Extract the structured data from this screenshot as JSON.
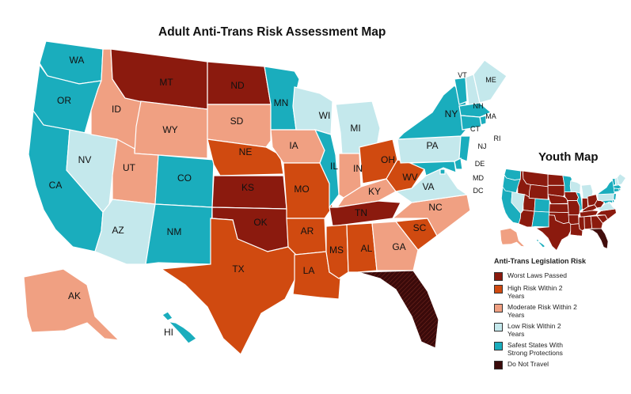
{
  "title": "Adult Anti-Trans Risk Assessment Map",
  "youth_title": "Youth Map",
  "colors": {
    "worst": "#8b1a0e",
    "high": "#d04a10",
    "moderate": "#f0a082",
    "low": "#c4e8ec",
    "safest": "#1aadbd",
    "dnt": "#3a0a0a",
    "border": "#ffffff"
  },
  "legend": {
    "title": "Anti-Trans Legislation Risk",
    "items": [
      {
        "label": "Worst Laws Passed",
        "color": "#8b1a0e"
      },
      {
        "label": "High Risk Within 2 Years",
        "color": "#d04a10"
      },
      {
        "label": "Moderate Risk Within 2 Years",
        "color": "#f0a082"
      },
      {
        "label": "Low Risk Within 2 Years",
        "color": "#c4e8ec"
      },
      {
        "label": "Safest States With Strong Protections",
        "color": "#1aadbd"
      },
      {
        "label": "Do Not Travel",
        "color": "#3a0a0a"
      }
    ]
  },
  "states": {
    "WA": "safest",
    "OR": "safest",
    "CA": "safest",
    "NV": "low",
    "ID": "moderate",
    "MT": "worst",
    "WY": "moderate",
    "UT": "moderate",
    "AZ": "low",
    "CO": "safest",
    "NM": "safest",
    "ND": "worst",
    "SD": "moderate",
    "NE": "high",
    "KS": "worst",
    "OK": "worst",
    "TX": "high",
    "MN": "safest",
    "IA": "moderate",
    "MO": "high",
    "AR": "high",
    "LA": "high",
    "WI": "low",
    "IL": "safest",
    "MI": "low",
    "IN": "moderate",
    "OH": "high",
    "KY": "moderate",
    "TN": "worst",
    "MS": "high",
    "AL": "high",
    "GA": "moderate",
    "FL": "dnt",
    "SC": "high",
    "NC": "moderate",
    "VA": "low",
    "WV": "high",
    "PA": "low",
    "NY": "safest",
    "VT": "safest",
    "NH": "low",
    "ME": "low",
    "MA": "safest",
    "RI": "safest",
    "CT": "safest",
    "NJ": "safest",
    "DE": "safest",
    "MD": "safest",
    "DC": "safest",
    "AK": "moderate",
    "HI": "safest"
  },
  "labels": [
    "WA",
    "OR",
    "CA",
    "NV",
    "ID",
    "MT",
    "WY",
    "UT",
    "AZ",
    "CO",
    "NM",
    "ND",
    "SD",
    "NE",
    "KS",
    "OK",
    "TX",
    "MN",
    "IA",
    "MO",
    "AR",
    "LA",
    "WI",
    "IL",
    "MI",
    "IN",
    "OH",
    "KY",
    "TN",
    "MS",
    "AL",
    "GA",
    "SC",
    "NC",
    "VA",
    "WV",
    "PA",
    "NY",
    "VT",
    "NH",
    "ME",
    "MA",
    "RI",
    "CT",
    "NJ",
    "DE",
    "MD",
    "DC",
    "AK",
    "HI"
  ]
}
